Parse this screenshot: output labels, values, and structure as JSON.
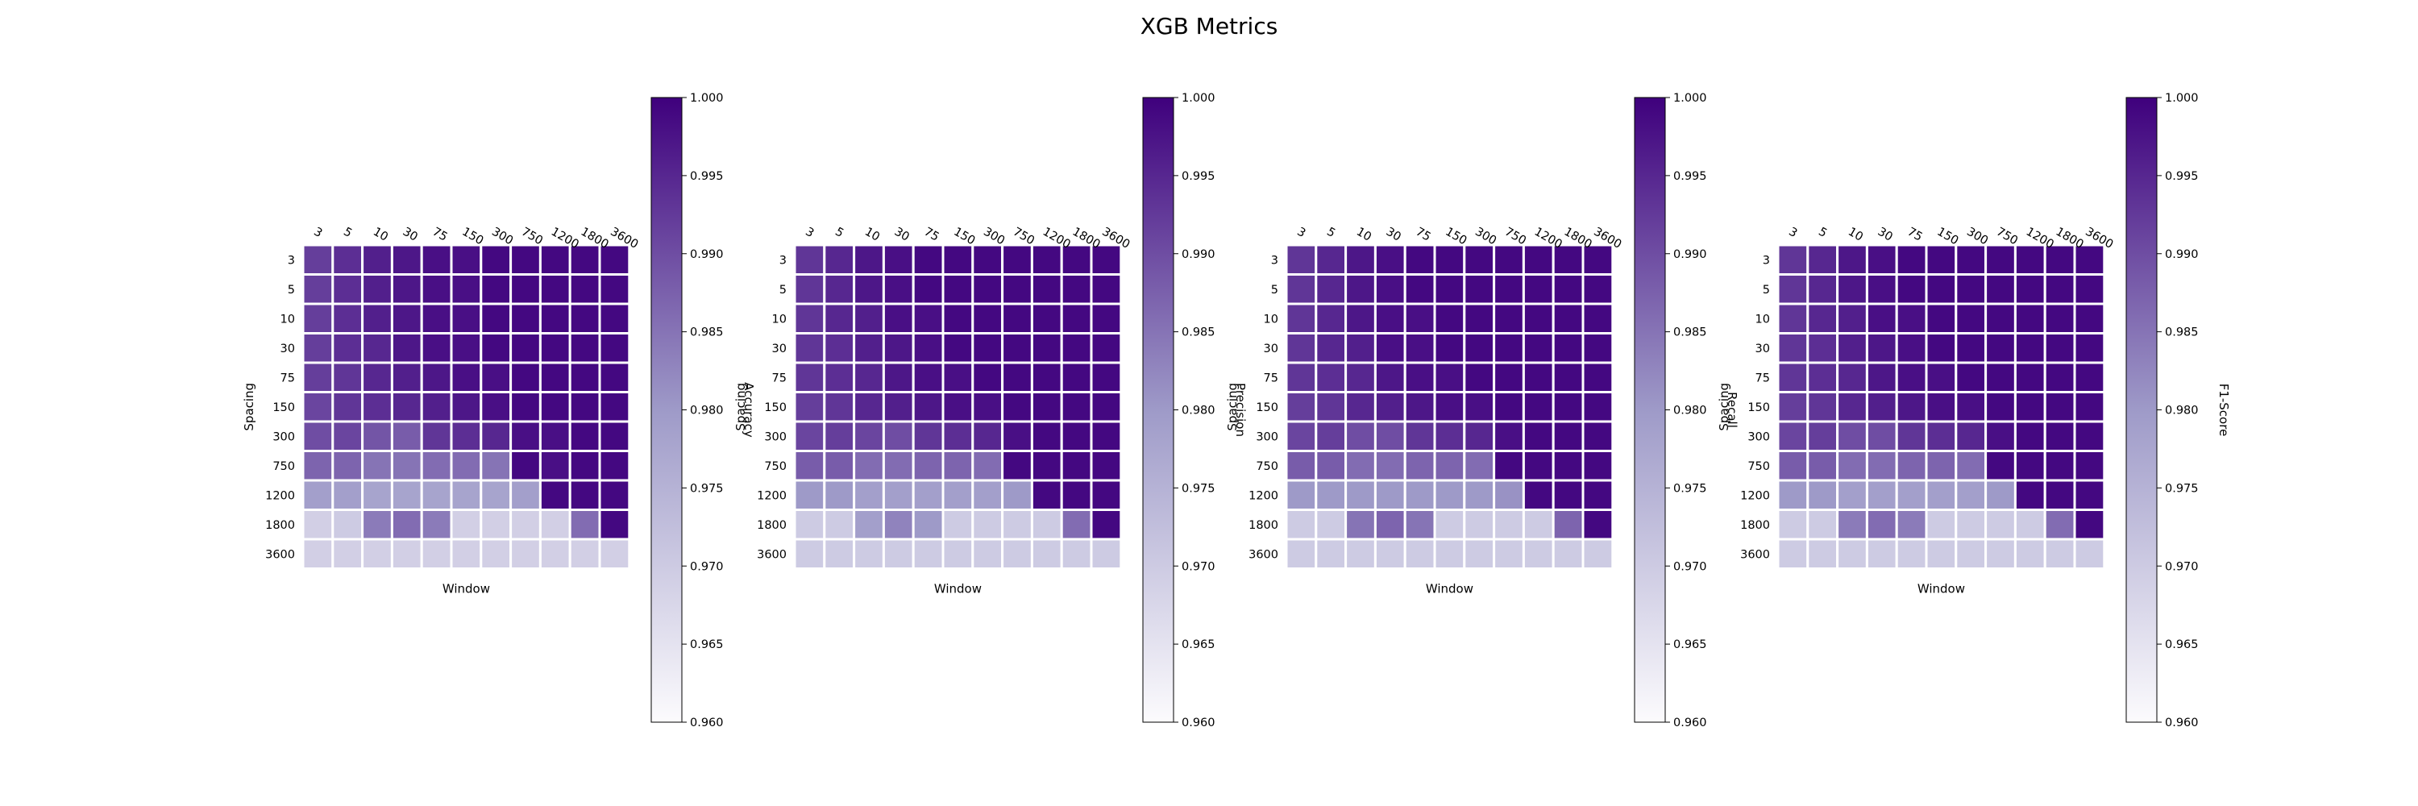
{
  "title": "XGB Metrics",
  "colorbar": {
    "min": 0.96,
    "max": 1.0,
    "ticks": [
      "0.960",
      "0.965",
      "0.970",
      "0.975",
      "0.980",
      "0.985",
      "0.990",
      "0.995",
      "1.000"
    ],
    "color_low": "#fcfbfd",
    "color_mid": "#9e9ac8",
    "color_high": "#3f007d"
  },
  "chart_data": [
    {
      "type": "heatmap",
      "xlabel": "Window",
      "ylabel": "Spacing",
      "colorbar_label": "Accuracy",
      "x": [
        "3",
        "5",
        "10",
        "30",
        "75",
        "150",
        "300",
        "750",
        "1200",
        "1800",
        "3600"
      ],
      "y": [
        "3",
        "5",
        "10",
        "30",
        "75",
        "150",
        "300",
        "750",
        "1200",
        "1800",
        "3600"
      ],
      "values": [
        [
          0.992,
          0.994,
          0.996,
          0.997,
          0.998,
          0.998,
          0.999,
          0.999,
          0.999,
          0.999,
          0.999
        ],
        [
          0.992,
          0.994,
          0.996,
          0.997,
          0.998,
          0.998,
          0.999,
          0.999,
          0.999,
          0.999,
          0.999
        ],
        [
          0.992,
          0.994,
          0.996,
          0.997,
          0.998,
          0.998,
          0.999,
          0.999,
          0.999,
          0.999,
          0.999
        ],
        [
          0.992,
          0.994,
          0.995,
          0.997,
          0.998,
          0.998,
          0.999,
          0.999,
          0.999,
          0.999,
          0.999
        ],
        [
          0.992,
          0.993,
          0.995,
          0.996,
          0.997,
          0.998,
          0.998,
          0.999,
          0.999,
          0.999,
          0.999
        ],
        [
          0.991,
          0.993,
          0.994,
          0.995,
          0.996,
          0.997,
          0.998,
          0.999,
          0.999,
          0.999,
          0.999
        ],
        [
          0.99,
          0.991,
          0.989,
          0.988,
          0.993,
          0.994,
          0.995,
          0.998,
          0.998,
          0.999,
          0.999
        ],
        [
          0.987,
          0.987,
          0.985,
          0.985,
          0.986,
          0.986,
          0.985,
          0.999,
          0.998,
          0.999,
          0.999
        ],
        [
          0.979,
          0.979,
          0.978,
          0.978,
          0.978,
          0.978,
          0.978,
          0.979,
          0.999,
          0.999,
          0.999
        ],
        [
          0.969,
          0.97,
          0.984,
          0.986,
          0.984,
          0.969,
          0.969,
          0.969,
          0.969,
          0.986,
          0.999
        ],
        [
          0.969,
          0.969,
          0.969,
          0.969,
          0.969,
          0.969,
          0.969,
          0.969,
          0.969,
          0.969,
          0.969
        ]
      ]
    },
    {
      "type": "heatmap",
      "xlabel": "Window",
      "ylabel": "Spacing",
      "colorbar_label": "Precision",
      "x": [
        "3",
        "5",
        "10",
        "30",
        "75",
        "150",
        "300",
        "750",
        "1200",
        "1800",
        "3600"
      ],
      "y": [
        "3",
        "5",
        "10",
        "30",
        "75",
        "150",
        "300",
        "750",
        "1200",
        "1800",
        "3600"
      ],
      "values": [
        [
          0.993,
          0.995,
          0.997,
          0.998,
          0.999,
          0.999,
          0.999,
          0.999,
          0.999,
          0.999,
          0.999
        ],
        [
          0.993,
          0.995,
          0.997,
          0.998,
          0.999,
          0.999,
          0.999,
          0.999,
          0.999,
          0.999,
          0.999
        ],
        [
          0.993,
          0.995,
          0.996,
          0.998,
          0.998,
          0.999,
          0.999,
          0.999,
          0.999,
          0.999,
          0.999
        ],
        [
          0.993,
          0.994,
          0.996,
          0.997,
          0.998,
          0.999,
          0.999,
          0.999,
          0.999,
          0.999,
          0.999
        ],
        [
          0.993,
          0.994,
          0.995,
          0.997,
          0.998,
          0.998,
          0.999,
          0.999,
          0.999,
          0.999,
          0.999
        ],
        [
          0.992,
          0.993,
          0.995,
          0.996,
          0.997,
          0.998,
          0.998,
          0.999,
          0.999,
          0.999,
          0.999
        ],
        [
          0.991,
          0.992,
          0.991,
          0.99,
          0.993,
          0.994,
          0.995,
          0.998,
          0.999,
          0.999,
          0.999
        ],
        [
          0.988,
          0.988,
          0.986,
          0.986,
          0.987,
          0.987,
          0.986,
          0.999,
          0.999,
          0.999,
          0.999
        ],
        [
          0.98,
          0.98,
          0.979,
          0.979,
          0.979,
          0.979,
          0.979,
          0.98,
          0.999,
          0.999,
          0.999
        ],
        [
          0.97,
          0.97,
          0.979,
          0.983,
          0.98,
          0.97,
          0.97,
          0.97,
          0.97,
          0.986,
          0.999
        ],
        [
          0.97,
          0.97,
          0.97,
          0.97,
          0.97,
          0.97,
          0.97,
          0.97,
          0.97,
          0.97,
          0.97
        ]
      ]
    },
    {
      "type": "heatmap",
      "xlabel": "Window",
      "ylabel": "Spacing",
      "colorbar_label": "Recall",
      "x": [
        "3",
        "5",
        "10",
        "30",
        "75",
        "150",
        "300",
        "750",
        "1200",
        "1800",
        "3600"
      ],
      "y": [
        "3",
        "5",
        "10",
        "30",
        "75",
        "150",
        "300",
        "750",
        "1200",
        "1800",
        "3600"
      ],
      "values": [
        [
          0.993,
          0.995,
          0.997,
          0.998,
          0.999,
          0.999,
          0.999,
          0.999,
          0.999,
          0.999,
          0.999
        ],
        [
          0.993,
          0.995,
          0.997,
          0.998,
          0.999,
          0.999,
          0.999,
          0.999,
          0.999,
          0.999,
          0.999
        ],
        [
          0.993,
          0.995,
          0.997,
          0.998,
          0.998,
          0.999,
          0.999,
          0.999,
          0.999,
          0.999,
          0.999
        ],
        [
          0.993,
          0.995,
          0.996,
          0.998,
          0.998,
          0.999,
          0.999,
          0.999,
          0.999,
          0.999,
          0.999
        ],
        [
          0.993,
          0.994,
          0.995,
          0.997,
          0.998,
          0.998,
          0.999,
          0.999,
          0.999,
          0.999,
          0.999
        ],
        [
          0.992,
          0.993,
          0.995,
          0.996,
          0.997,
          0.998,
          0.998,
          0.999,
          0.999,
          0.999,
          0.999
        ],
        [
          0.991,
          0.992,
          0.99,
          0.99,
          0.993,
          0.994,
          0.995,
          0.998,
          0.999,
          0.999,
          0.999
        ],
        [
          0.988,
          0.988,
          0.986,
          0.986,
          0.987,
          0.987,
          0.986,
          0.999,
          0.999,
          0.999,
          0.999
        ],
        [
          0.98,
          0.98,
          0.98,
          0.98,
          0.98,
          0.98,
          0.98,
          0.981,
          0.999,
          0.999,
          0.999
        ],
        [
          0.97,
          0.97,
          0.985,
          0.987,
          0.985,
          0.97,
          0.97,
          0.97,
          0.97,
          0.987,
          0.999
        ],
        [
          0.97,
          0.97,
          0.97,
          0.97,
          0.97,
          0.97,
          0.97,
          0.97,
          0.97,
          0.97,
          0.97
        ]
      ]
    },
    {
      "type": "heatmap",
      "xlabel": "Window",
      "ylabel": "Spacing",
      "colorbar_label": "F1-Score",
      "x": [
        "3",
        "5",
        "10",
        "30",
        "75",
        "150",
        "300",
        "750",
        "1200",
        "1800",
        "3600"
      ],
      "y": [
        "3",
        "5",
        "10",
        "30",
        "75",
        "150",
        "300",
        "750",
        "1200",
        "1800",
        "3600"
      ],
      "values": [
        [
          0.993,
          0.995,
          0.997,
          0.998,
          0.999,
          0.999,
          0.999,
          0.999,
          0.999,
          0.999,
          0.999
        ],
        [
          0.993,
          0.995,
          0.997,
          0.998,
          0.999,
          0.999,
          0.999,
          0.999,
          0.999,
          0.999,
          0.999
        ],
        [
          0.993,
          0.995,
          0.996,
          0.998,
          0.998,
          0.999,
          0.999,
          0.999,
          0.999,
          0.999,
          0.999
        ],
        [
          0.993,
          0.994,
          0.996,
          0.997,
          0.998,
          0.999,
          0.999,
          0.999,
          0.999,
          0.999,
          0.999
        ],
        [
          0.993,
          0.994,
          0.995,
          0.997,
          0.998,
          0.998,
          0.999,
          0.999,
          0.999,
          0.999,
          0.999
        ],
        [
          0.992,
          0.993,
          0.995,
          0.996,
          0.997,
          0.998,
          0.998,
          0.999,
          0.999,
          0.999,
          0.999
        ],
        [
          0.991,
          0.992,
          0.99,
          0.99,
          0.993,
          0.994,
          0.995,
          0.998,
          0.999,
          0.999,
          0.999
        ],
        [
          0.988,
          0.988,
          0.986,
          0.986,
          0.987,
          0.987,
          0.986,
          0.999,
          0.999,
          0.999,
          0.999
        ],
        [
          0.98,
          0.98,
          0.979,
          0.979,
          0.979,
          0.979,
          0.979,
          0.98,
          0.999,
          0.999,
          0.999
        ],
        [
          0.97,
          0.97,
          0.984,
          0.986,
          0.984,
          0.97,
          0.97,
          0.97,
          0.97,
          0.986,
          0.999
        ],
        [
          0.97,
          0.97,
          0.97,
          0.97,
          0.97,
          0.97,
          0.97,
          0.97,
          0.97,
          0.97,
          0.97
        ]
      ]
    }
  ]
}
